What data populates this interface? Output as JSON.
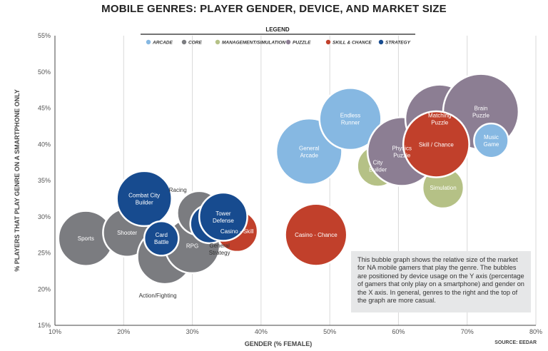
{
  "chart_data": {
    "type": "bubble",
    "title": "MOBILE GENRES: PLAYER GENDER, DEVICE, AND MARKET SIZE",
    "xlabel": "GENDER (% FEMALE)",
    "ylabel": "% PLAYERS THAT PLAY GENRE ON A SMARTPHONE ONLY",
    "xlim": [
      10,
      80
    ],
    "ylim": [
      15,
      55
    ],
    "x_ticks": [
      "10%",
      "20%",
      "30%",
      "40%",
      "50%",
      "60%",
      "70%",
      "80%"
    ],
    "y_ticks": [
      "15%",
      "20%",
      "25%",
      "30%",
      "35%",
      "40%",
      "45%",
      "50%",
      "55%"
    ],
    "grid": "vertical",
    "legend": {
      "title": "LEGEND",
      "placement": "top-center",
      "items": [
        {
          "name": "ARCADE",
          "color": "#86b8e2"
        },
        {
          "name": "CORE",
          "color": "#7b7c80"
        },
        {
          "name": "MANAGEMENT/SIMULATION",
          "color": "#b5c186"
        },
        {
          "name": "PUZZLE",
          "color": "#8c7e93"
        },
        {
          "name": "SKILL & CHANCE",
          "color": "#c1402b"
        },
        {
          "name": "STRATEGY",
          "color": "#174b8f"
        }
      ]
    },
    "series": [
      {
        "label": "Sports",
        "category": "CORE",
        "x": 14.5,
        "y": 27.0,
        "r": 4.0
      },
      {
        "label": "Shooter",
        "category": "CORE",
        "x": 20.5,
        "y": 27.8,
        "r": 3.5
      },
      {
        "label": "Action/Fighting",
        "category": "CORE",
        "x": 26.0,
        "y": 24.5,
        "r": 4.0,
        "label_outside": true
      },
      {
        "label": "RPG",
        "category": "CORE",
        "x": 30.0,
        "y": 26.0,
        "r": 4.0
      },
      {
        "label": "Racing",
        "category": "CORE",
        "x": 31.0,
        "y": 30.5,
        "r": 3.2,
        "label_outside": true
      },
      {
        "label": "Casino - Skill",
        "category": "SKILL & CHANCE",
        "x": 36.5,
        "y": 28.0,
        "r": 3.0
      },
      {
        "label": "Casino - Chance",
        "category": "SKILL & CHANCE",
        "x": 48.0,
        "y": 27.5,
        "r": 4.5
      },
      {
        "label": "General Strategy",
        "category": "STRATEGY",
        "x": 32.5,
        "y": 29.0,
        "r": 2.8,
        "label_outside": true
      },
      {
        "label": "Tower Defense",
        "category": "STRATEGY",
        "x": 34.5,
        "y": 30.0,
        "r": 3.5
      },
      {
        "label": "Combat City Builder",
        "category": "STRATEGY",
        "x": 23.0,
        "y": 32.5,
        "r": 4.0
      },
      {
        "label": "Card Battle",
        "category": "STRATEGY",
        "x": 25.5,
        "y": 27.0,
        "r": 2.5
      },
      {
        "label": "General Arcade",
        "category": "ARCADE",
        "x": 47.0,
        "y": 39.0,
        "r": 4.8
      },
      {
        "label": "Endless Runner",
        "category": "ARCADE",
        "x": 53.0,
        "y": 43.5,
        "r": 4.5
      },
      {
        "label": "City Builder",
        "category": "MANAGEMENT/SIMULATION",
        "x": 57.0,
        "y": 37.0,
        "r": 3.0
      },
      {
        "label": "Simulation",
        "category": "MANAGEMENT/SIMULATION",
        "x": 66.5,
        "y": 34.0,
        "r": 3.0
      },
      {
        "label": "Physics Puzzle",
        "category": "PUZZLE",
        "x": 60.5,
        "y": 39.0,
        "r": 5.0
      },
      {
        "label": "Matching Puzzle",
        "category": "PUZZLE",
        "x": 66.0,
        "y": 43.5,
        "r": 5.0
      },
      {
        "label": "Brain Puzzle",
        "category": "PUZZLE",
        "x": 72.0,
        "y": 44.5,
        "r": 5.5
      },
      {
        "label": "Skill / Chance",
        "category": "SKILL & CHANCE",
        "x": 65.5,
        "y": 40.0,
        "r": 4.8
      },
      {
        "label": "Music Game",
        "category": "ARCADE",
        "x": 73.5,
        "y": 40.5,
        "r": 2.5
      }
    ],
    "note": "This bubble graph shows the relative size of the market for NA mobile gamers that play the genre. The bubbles are positioned by device usage on the Y axis (percentage of gamers that only play on a smartphone) and gender on the X axis. In general, genres to the right and the top of the graph are more casual.",
    "source": "SOURCE: EEDAR"
  }
}
